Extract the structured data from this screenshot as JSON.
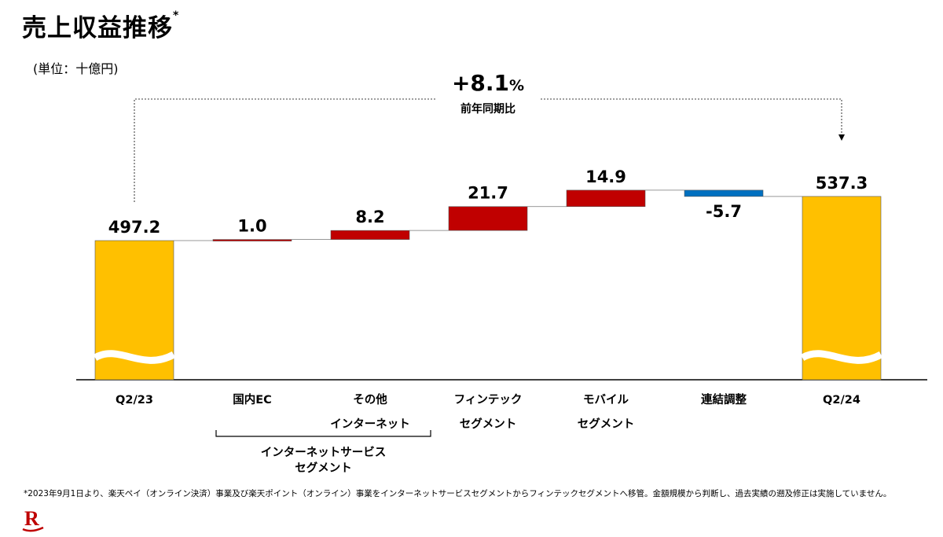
{
  "page": {
    "title": "売上収益推移",
    "title_mark": "*",
    "unit_label": "(単位：十億円)",
    "footnote": "*2023年9月1日より、楽天ペイ（オンライン決済）事業及び楽天ポイント（オンライン）事業をインターネットサービスセグメントからフィンテックセグメントへ移管。金額規模から判断し、過去実績の遡及修正は実施していません。"
  },
  "chart_data": {
    "type": "waterfall",
    "unit": "十億円",
    "items": [
      {
        "category_lines": [
          "Q2/23"
        ],
        "label": "497.2",
        "value": 497.2,
        "kind": "total"
      },
      {
        "category_lines": [
          "国内EC"
        ],
        "label": "1.0",
        "value": 1.0,
        "kind": "increase"
      },
      {
        "category_lines": [
          "その他",
          "インターネット"
        ],
        "label": "8.2",
        "value": 8.2,
        "kind": "increase"
      },
      {
        "category_lines": [
          "フィンテック",
          "セグメント"
        ],
        "label": "21.7",
        "value": 21.7,
        "kind": "increase"
      },
      {
        "category_lines": [
          "モバイル",
          "セグメント"
        ],
        "label": "14.9",
        "value": 14.9,
        "kind": "increase"
      },
      {
        "category_lines": [
          "連結調整"
        ],
        "label": "-5.7",
        "value": -5.7,
        "kind": "decrease"
      },
      {
        "category_lines": [
          "Q2/24"
        ],
        "label": "537.3",
        "value": 537.3,
        "kind": "total"
      }
    ],
    "group_label_lines": [
      "インターネットサービス",
      "セグメント"
    ],
    "growth": {
      "value": "+8.1",
      "unit": "%",
      "label": "前年同期比"
    },
    "axis_break": true,
    "colors": {
      "total": "#FFC000",
      "increase": "#C00000",
      "decrease": "#0070C0",
      "brand": "#BF0000"
    }
  }
}
